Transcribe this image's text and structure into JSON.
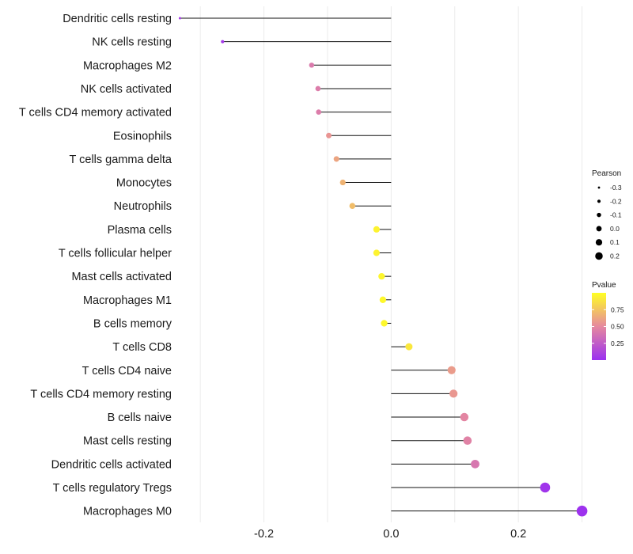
{
  "chart_data": {
    "type": "lollipop",
    "orientation": "horizontal",
    "categories": [
      "Dendritic cells resting",
      "NK cells resting",
      "Macrophages M2",
      "NK cells activated",
      "T cells CD4 memory activated",
      "Eosinophils",
      "T cells gamma delta",
      "Monocytes",
      "Neutrophils",
      "Plasma cells",
      "T cells follicular helper",
      "Mast cells activated",
      "Macrophages M1",
      "B cells memory",
      "T cells CD8",
      "T cells CD4 naive",
      "T cells CD4 memory resting",
      "B cells naive",
      "Mast cells resting",
      "Dendritic cells activated",
      "T cells regulatory  Tregs ",
      "Macrophages M0"
    ],
    "values": [
      -0.332,
      -0.265,
      -0.125,
      -0.115,
      -0.114,
      -0.098,
      -0.086,
      -0.076,
      -0.061,
      -0.023,
      -0.023,
      -0.015,
      -0.013,
      -0.011,
      0.028,
      0.095,
      0.098,
      0.115,
      0.12,
      0.132,
      0.242,
      0.3
    ],
    "pvalues": [
      0.05,
      0.05,
      0.42,
      0.43,
      0.43,
      0.55,
      0.62,
      0.68,
      0.72,
      0.95,
      0.95,
      0.96,
      0.97,
      0.97,
      0.9,
      0.58,
      0.56,
      0.48,
      0.46,
      0.4,
      0.03,
      0.01
    ],
    "xlabel": "",
    "ylabel": "",
    "xlim": [
      -0.335,
      0.308
    ],
    "xticks": [
      -0.2,
      0.0,
      0.2
    ],
    "xtick_labels": [
      "-0.2",
      "0.0",
      "0.2"
    ],
    "grid": true,
    "legend_size": {
      "title": "Pearson",
      "values": [
        -0.3,
        -0.2,
        -0.1,
        0.0,
        0.1,
        0.2
      ],
      "labels": [
        "-0.3",
        "-0.2",
        "-0.1",
        "0.0",
        "0.1",
        "0.2"
      ]
    },
    "legend_color": {
      "title": "Pvalue",
      "range": [
        0.0,
        1.0
      ],
      "ticks": [
        0.75,
        0.5,
        0.25
      ],
      "tick_labels": [
        "0.75",
        "0.50",
        "0.25"
      ],
      "low_color": "#9b30f0",
      "mid_color": "#e6899f",
      "high_color": "#ffff24"
    },
    "legend_position": "right"
  }
}
